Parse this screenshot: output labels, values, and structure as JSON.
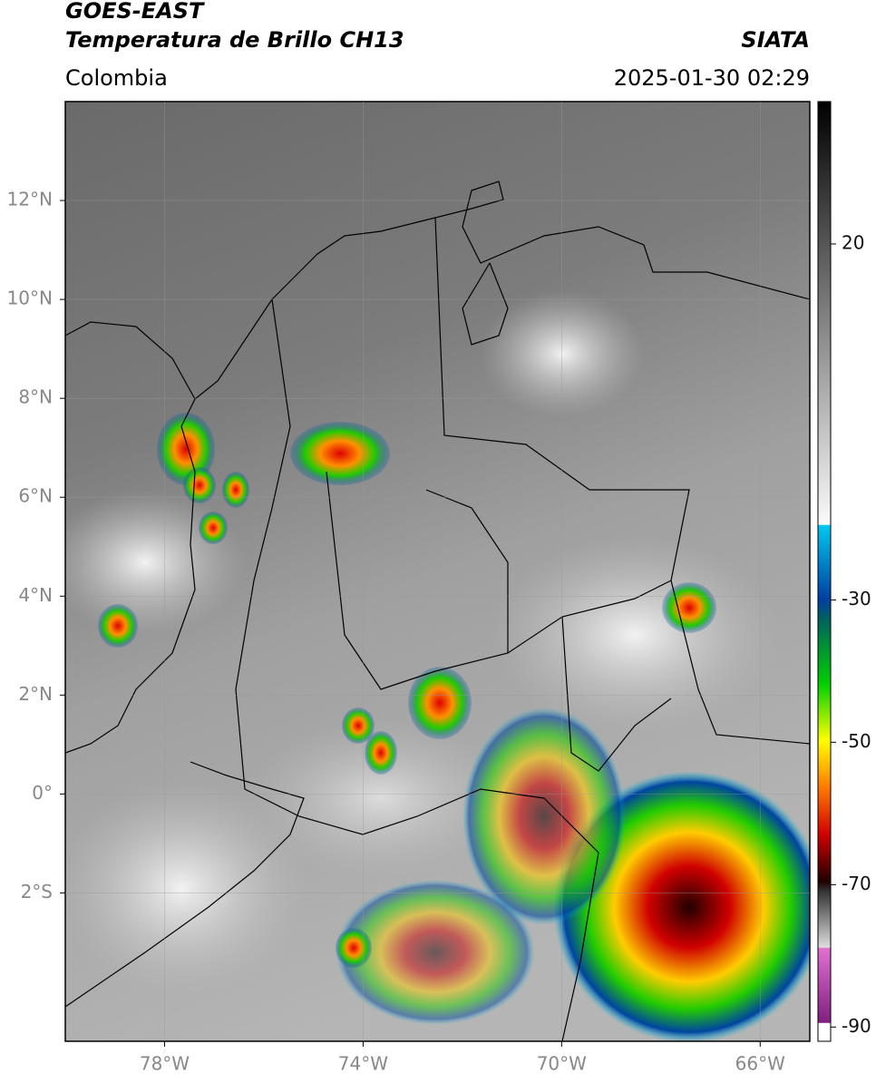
{
  "header": {
    "title": "GOES-EAST",
    "subtitle": "Temperatura de Brillo CH13",
    "region": "Colombia",
    "source": "SIATA",
    "datetime": "2025-01-30 02:29"
  },
  "map": {
    "xlim": [
      -80,
      -65
    ],
    "ylim": [
      -5,
      14
    ],
    "xticks": [
      {
        "value": -78,
        "label": "78°W"
      },
      {
        "value": -74,
        "label": "74°W"
      },
      {
        "value": -70,
        "label": "70°W"
      },
      {
        "value": -66,
        "label": "66°W"
      }
    ],
    "yticks": [
      {
        "value": 12,
        "label": "12°N"
      },
      {
        "value": 10,
        "label": "10°N"
      },
      {
        "value": 8,
        "label": "8°N"
      },
      {
        "value": 6,
        "label": "6°N"
      },
      {
        "value": 4,
        "label": "4°N"
      },
      {
        "value": 2,
        "label": "2°N"
      },
      {
        "value": 0,
        "label": "0°"
      },
      {
        "value": -2,
        "label": "2°S"
      }
    ]
  },
  "colorbar": {
    "lim": [
      -92,
      40
    ],
    "ticks": [
      20,
      -30,
      -50,
      -70,
      -90
    ]
  }
}
